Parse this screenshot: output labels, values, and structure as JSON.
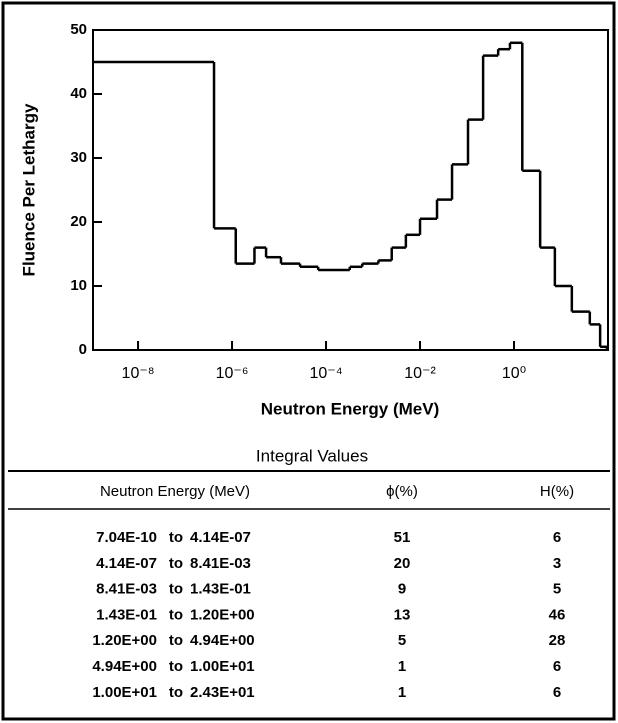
{
  "chart_data": {
    "type": "histogram",
    "xscale": "log",
    "ylabel": "Fluence Per Lethargy",
    "xlabel": "Neutron Energy (MeV)",
    "bins": [
      1.1e-09,
      4.14e-07,
      1.2e-06,
      3e-06,
      5.3e-06,
      1.1e-05,
      2.8e-05,
      6.8e-05,
      0.00032,
      0.00059,
      0.0013,
      0.0025,
      0.005,
      0.01,
      0.023,
      0.048,
      0.105,
      0.22,
      0.46,
      0.82,
      1.5,
      3.6,
      7.4,
      17,
      41,
      68,
      95
    ],
    "values": [
      45,
      19,
      13.5,
      16,
      14.5,
      13.5,
      13,
      12.5,
      13,
      13.5,
      14,
      16,
      18,
      20.5,
      23.5,
      29,
      36,
      46,
      47,
      48,
      28,
      16,
      10,
      6,
      4,
      0.5
    ],
    "color": "#000000",
    "xlim": [
      1.1e-09,
      100
    ],
    "ylim": [
      0,
      50
    ],
    "xticks": [
      {
        "value": 1e-08,
        "label": "10⁻⁸"
      },
      {
        "value": 1e-06,
        "label": "10⁻⁶"
      },
      {
        "value": 0.0001,
        "label": "10⁻⁴"
      },
      {
        "value": 0.01,
        "label": "10⁻²"
      },
      {
        "value": 1,
        "label": "10⁰"
      }
    ],
    "yticks": [
      0,
      10,
      20,
      30,
      40,
      50
    ]
  },
  "table": {
    "title": "Integral Values",
    "headers": [
      "Neutron Energy (MeV)",
      "ϕ(%)",
      "H(%)"
    ],
    "rows": [
      [
        "7.04E-10",
        "to",
        "4.14E-07",
        51,
        6
      ],
      [
        "4.14E-07",
        "to",
        "8.41E-03",
        20,
        3
      ],
      [
        "8.41E-03",
        "to",
        "1.43E-01",
        9,
        5
      ],
      [
        "1.43E-01",
        "to",
        "1.20E+00",
        13,
        46
      ],
      [
        "1.20E+00",
        "to",
        "4.94E+00",
        5,
        28
      ],
      [
        "4.94E+00",
        "to",
        "1.00E+01",
        1,
        6
      ],
      [
        "1.00E+01",
        "to",
        "2.43E+01",
        1,
        6
      ]
    ]
  }
}
